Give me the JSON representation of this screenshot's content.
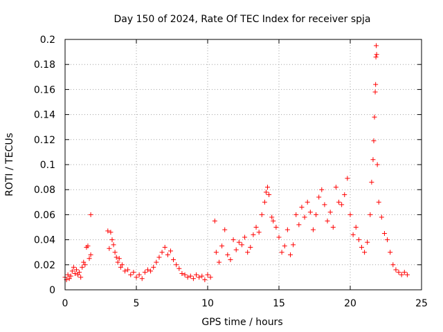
{
  "chart_data": {
    "type": "scatter",
    "title": "Day 150 of 2024, Rate Of TEC Index for receiver spja",
    "xlabel": "GPS time / hours",
    "ylabel": "ROTI / TECUs",
    "xlim": [
      0,
      25
    ],
    "ylim": [
      0,
      0.2
    ],
    "xticks": [
      0,
      5,
      10,
      15,
      20,
      25
    ],
    "xtick_labels": [
      "0",
      "5",
      "10",
      "15",
      "20",
      "25"
    ],
    "yticks": [
      0,
      0.02,
      0.04,
      0.06,
      0.08,
      0.1,
      0.12,
      0.14,
      0.16,
      0.18,
      0.2
    ],
    "ytick_labels": [
      "0",
      "0.02",
      "0.04",
      "0.06",
      "0.08",
      "0.1",
      "0.12",
      "0.14",
      "0.16",
      "0.18",
      "0.2"
    ],
    "grid": true,
    "marker": "+",
    "color": "#ff0000",
    "series": [
      {
        "name": "ROTI",
        "points": [
          [
            0.0,
            0.01
          ],
          [
            0.1,
            0.008
          ],
          [
            0.2,
            0.012
          ],
          [
            0.3,
            0.009
          ],
          [
            0.4,
            0.011
          ],
          [
            0.5,
            0.015
          ],
          [
            0.6,
            0.018
          ],
          [
            0.7,
            0.013
          ],
          [
            0.8,
            0.016
          ],
          [
            0.9,
            0.012
          ],
          [
            1.0,
            0.014
          ],
          [
            1.1,
            0.01
          ],
          [
            1.2,
            0.018
          ],
          [
            1.3,
            0.022
          ],
          [
            1.4,
            0.02
          ],
          [
            1.5,
            0.034
          ],
          [
            1.6,
            0.035
          ],
          [
            1.7,
            0.025
          ],
          [
            1.8,
            0.028
          ],
          [
            1.8,
            0.06
          ],
          [
            3.0,
            0.047
          ],
          [
            3.1,
            0.033
          ],
          [
            3.2,
            0.046
          ],
          [
            3.3,
            0.04
          ],
          [
            3.4,
            0.036
          ],
          [
            3.5,
            0.03
          ],
          [
            3.6,
            0.026
          ],
          [
            3.7,
            0.022
          ],
          [
            3.8,
            0.025
          ],
          [
            3.9,
            0.018
          ],
          [
            4.0,
            0.02
          ],
          [
            4.2,
            0.015
          ],
          [
            4.4,
            0.016
          ],
          [
            4.6,
            0.012
          ],
          [
            4.8,
            0.014
          ],
          [
            5.0,
            0.01
          ],
          [
            5.2,
            0.012
          ],
          [
            5.4,
            0.009
          ],
          [
            5.6,
            0.014
          ],
          [
            5.8,
            0.016
          ],
          [
            6.0,
            0.015
          ],
          [
            6.2,
            0.018
          ],
          [
            6.4,
            0.022
          ],
          [
            6.6,
            0.026
          ],
          [
            6.8,
            0.03
          ],
          [
            7.0,
            0.034
          ],
          [
            7.2,
            0.028
          ],
          [
            7.4,
            0.031
          ],
          [
            7.6,
            0.024
          ],
          [
            7.8,
            0.02
          ],
          [
            8.0,
            0.017
          ],
          [
            8.2,
            0.013
          ],
          [
            8.4,
            0.012
          ],
          [
            8.6,
            0.01
          ],
          [
            8.8,
            0.011
          ],
          [
            9.0,
            0.009
          ],
          [
            9.2,
            0.012
          ],
          [
            9.4,
            0.01
          ],
          [
            9.6,
            0.011
          ],
          [
            9.8,
            0.008
          ],
          [
            10.0,
            0.012
          ],
          [
            10.2,
            0.01
          ],
          [
            10.5,
            0.055
          ],
          [
            10.6,
            0.03
          ],
          [
            10.8,
            0.022
          ],
          [
            11.0,
            0.035
          ],
          [
            11.2,
            0.048
          ],
          [
            11.4,
            0.028
          ],
          [
            11.6,
            0.024
          ],
          [
            11.8,
            0.04
          ],
          [
            12.0,
            0.032
          ],
          [
            12.2,
            0.038
          ],
          [
            12.4,
            0.036
          ],
          [
            12.6,
            0.042
          ],
          [
            12.8,
            0.03
          ],
          [
            13.0,
            0.034
          ],
          [
            13.2,
            0.044
          ],
          [
            13.4,
            0.05
          ],
          [
            13.6,
            0.046
          ],
          [
            13.8,
            0.06
          ],
          [
            14.0,
            0.07
          ],
          [
            14.1,
            0.078
          ],
          [
            14.2,
            0.082
          ],
          [
            14.3,
            0.076
          ],
          [
            14.5,
            0.058
          ],
          [
            14.6,
            0.055
          ],
          [
            14.8,
            0.05
          ],
          [
            15.0,
            0.042
          ],
          [
            15.2,
            0.03
          ],
          [
            15.4,
            0.035
          ],
          [
            15.6,
            0.048
          ],
          [
            15.8,
            0.028
          ],
          [
            16.0,
            0.036
          ],
          [
            16.2,
            0.06
          ],
          [
            16.4,
            0.052
          ],
          [
            16.6,
            0.066
          ],
          [
            16.8,
            0.058
          ],
          [
            17.0,
            0.07
          ],
          [
            17.2,
            0.062
          ],
          [
            17.4,
            0.048
          ],
          [
            17.6,
            0.06
          ],
          [
            17.8,
            0.074
          ],
          [
            18.0,
            0.08
          ],
          [
            18.2,
            0.068
          ],
          [
            18.4,
            0.055
          ],
          [
            18.6,
            0.062
          ],
          [
            18.8,
            0.05
          ],
          [
            19.0,
            0.082
          ],
          [
            19.2,
            0.07
          ],
          [
            19.4,
            0.068
          ],
          [
            19.6,
            0.076
          ],
          [
            19.8,
            0.089
          ],
          [
            20.0,
            0.06
          ],
          [
            20.2,
            0.044
          ],
          [
            20.4,
            0.05
          ],
          [
            20.6,
            0.04
          ],
          [
            20.8,
            0.034
          ],
          [
            21.0,
            0.03
          ],
          [
            21.2,
            0.038
          ],
          [
            21.4,
            0.06
          ],
          [
            21.5,
            0.086
          ],
          [
            21.6,
            0.104
          ],
          [
            21.65,
            0.119
          ],
          [
            21.7,
            0.138
          ],
          [
            21.75,
            0.158
          ],
          [
            21.78,
            0.164
          ],
          [
            21.8,
            0.186
          ],
          [
            21.82,
            0.195
          ],
          [
            21.85,
            0.188
          ],
          [
            21.9,
            0.1
          ],
          [
            22.0,
            0.07
          ],
          [
            22.2,
            0.058
          ],
          [
            22.4,
            0.045
          ],
          [
            22.6,
            0.04
          ],
          [
            22.8,
            0.03
          ],
          [
            23.0,
            0.02
          ],
          [
            23.2,
            0.016
          ],
          [
            23.4,
            0.014
          ],
          [
            23.6,
            0.012
          ],
          [
            23.8,
            0.014
          ],
          [
            24.0,
            0.012
          ]
        ]
      }
    ]
  }
}
